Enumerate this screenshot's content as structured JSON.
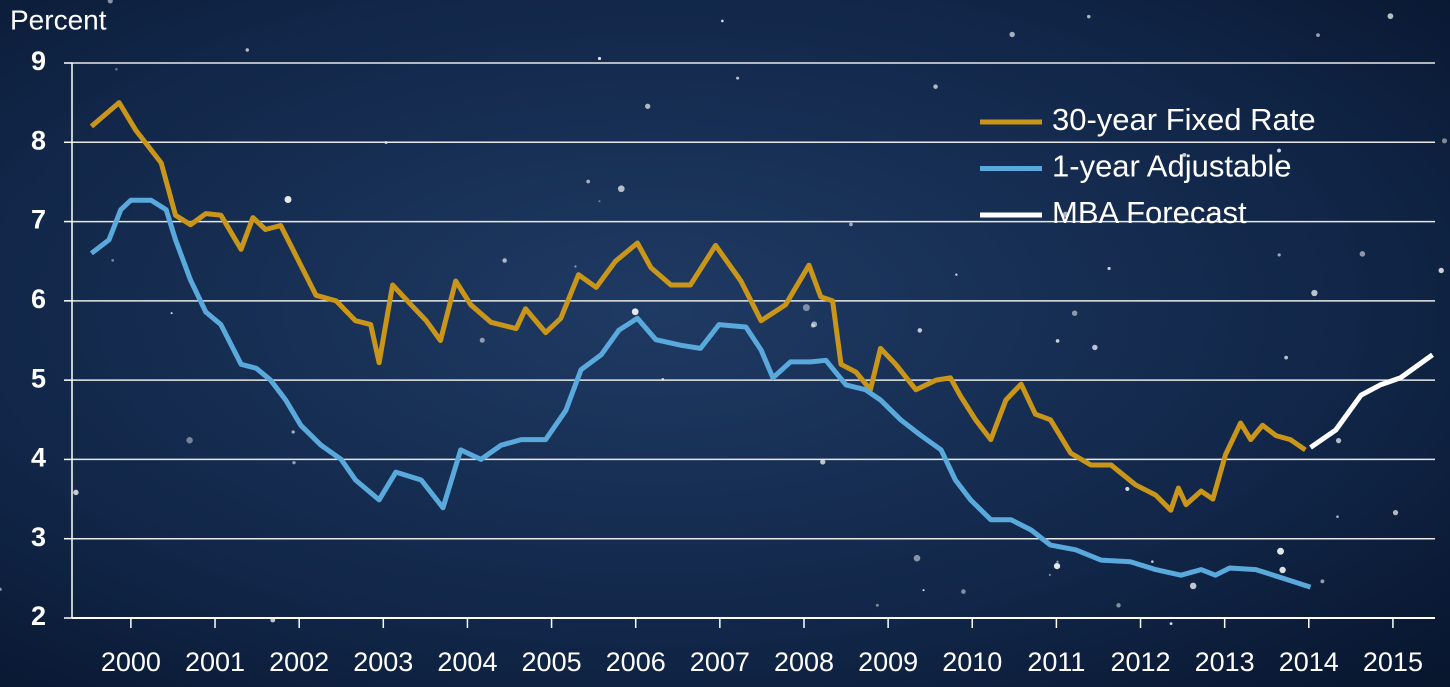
{
  "chart_data": {
    "type": "line",
    "y_label": "Percent",
    "xlim": [
      1999.8,
      2016.0
    ],
    "xticks": [
      {
        "value": 2000.5,
        "label": "2000"
      },
      {
        "value": 2001.5,
        "label": "2001"
      },
      {
        "value": 2002.5,
        "label": "2002"
      },
      {
        "value": 2003.5,
        "label": "2003"
      },
      {
        "value": 2004.5,
        "label": "2004"
      },
      {
        "value": 2005.5,
        "label": "2005"
      },
      {
        "value": 2006.5,
        "label": "2006"
      },
      {
        "value": 2007.5,
        "label": "2007"
      },
      {
        "value": 2008.5,
        "label": "2008"
      },
      {
        "value": 2009.5,
        "label": "2009"
      },
      {
        "value": 2010.5,
        "label": "2010"
      },
      {
        "value": 2011.5,
        "label": "2011"
      },
      {
        "value": 2012.5,
        "label": "2012"
      },
      {
        "value": 2013.5,
        "label": "2013"
      },
      {
        "value": 2014.5,
        "label": "2014"
      },
      {
        "value": 2015.5,
        "label": "2015"
      }
    ],
    "ylim": [
      2,
      9
    ],
    "yticks": [
      2,
      3,
      4,
      5,
      6,
      7,
      8,
      9
    ],
    "grid": true,
    "legend": "upper right",
    "series": [
      {
        "name": "30-year Fixed Rate",
        "color": "#c9961a",
        "x": [
          2000.03,
          2000.36,
          2000.56,
          2000.86,
          2001.03,
          2001.21,
          2001.39,
          2001.57,
          2001.81,
          2001.95,
          2002.1,
          2002.28,
          2002.52,
          2002.7,
          2002.94,
          2003.17,
          2003.35,
          2003.45,
          2003.61,
          2003.83,
          2004.01,
          2004.18,
          2004.36,
          2004.54,
          2004.78,
          2005.08,
          2005.19,
          2005.43,
          2005.61,
          2005.82,
          2006.03,
          2006.26,
          2006.52,
          2006.68,
          2006.92,
          2007.15,
          2007.45,
          2007.75,
          2007.99,
          2008.28,
          2008.56,
          2008.7,
          2008.84,
          2008.94,
          2009.12,
          2009.29,
          2009.41,
          2009.59,
          2009.83,
          2010.07,
          2010.24,
          2010.36,
          2010.54,
          2010.72,
          2010.9,
          2011.08,
          2011.25,
          2011.43,
          2011.67,
          2011.91,
          2012.15,
          2012.44,
          2012.68,
          2012.86,
          2012.95,
          2013.04,
          2013.22,
          2013.36,
          2013.51,
          2013.69,
          2013.81,
          2013.95,
          2014.11,
          2014.28,
          2014.46
        ],
        "values": [
          8.2,
          8.5,
          8.15,
          7.74,
          7.08,
          6.96,
          7.1,
          7.08,
          6.65,
          7.05,
          6.9,
          6.95,
          6.45,
          6.07,
          6.0,
          5.75,
          5.7,
          5.22,
          6.2,
          5.95,
          5.75,
          5.5,
          6.25,
          5.95,
          5.73,
          5.65,
          5.9,
          5.6,
          5.78,
          6.33,
          6.17,
          6.5,
          6.73,
          6.42,
          6.2,
          6.2,
          6.7,
          6.25,
          5.75,
          5.95,
          6.45,
          6.05,
          6.0,
          5.2,
          5.1,
          4.88,
          5.4,
          5.2,
          4.88,
          5.0,
          5.03,
          4.8,
          4.5,
          4.25,
          4.75,
          4.95,
          4.57,
          4.5,
          4.08,
          3.93,
          3.93,
          3.68,
          3.55,
          3.36,
          3.64,
          3.43,
          3.6,
          3.5,
          4.06,
          4.46,
          4.25,
          4.43,
          4.3,
          4.25,
          4.12
        ]
      },
      {
        "name": "1-year Adjustable",
        "color": "#5aa9dc",
        "x": [
          2000.03,
          2000.24,
          2000.38,
          2000.5,
          2000.74,
          2000.92,
          2001.03,
          2001.21,
          2001.39,
          2001.57,
          2001.81,
          2001.99,
          2002.16,
          2002.34,
          2002.52,
          2002.76,
          2003.0,
          2003.17,
          2003.45,
          2003.65,
          2003.95,
          2004.21,
          2004.42,
          2004.66,
          2004.9,
          2005.14,
          2005.43,
          2005.67,
          2005.85,
          2006.09,
          2006.3,
          2006.52,
          2006.74,
          2007.04,
          2007.27,
          2007.49,
          2007.81,
          2007.99,
          2008.13,
          2008.34,
          2008.58,
          2008.76,
          2009.0,
          2009.23,
          2009.41,
          2009.65,
          2009.88,
          2010.13,
          2010.3,
          2010.48,
          2010.72,
          2010.96,
          2011.2,
          2011.43,
          2011.73,
          2012.03,
          2012.38,
          2012.68,
          2012.98,
          2013.22,
          2013.39,
          2013.56,
          2013.87,
          2014.17,
          2014.52
        ],
        "values": [
          6.6,
          6.77,
          7.15,
          7.27,
          7.27,
          7.15,
          6.77,
          6.26,
          5.86,
          5.7,
          5.2,
          5.15,
          5.0,
          4.75,
          4.43,
          4.18,
          4.0,
          3.74,
          3.49,
          3.84,
          3.74,
          3.39,
          4.12,
          4.0,
          4.18,
          4.25,
          4.25,
          4.62,
          5.13,
          5.32,
          5.63,
          5.78,
          5.51,
          5.44,
          5.4,
          5.7,
          5.67,
          5.38,
          5.03,
          5.23,
          5.23,
          5.25,
          4.94,
          4.88,
          4.75,
          4.5,
          4.31,
          4.12,
          3.74,
          3.49,
          3.24,
          3.24,
          3.11,
          2.92,
          2.86,
          2.73,
          2.71,
          2.61,
          2.54,
          2.61,
          2.54,
          2.63,
          2.61,
          2.51,
          2.39
        ]
      },
      {
        "name": "MBA Forecast",
        "color": "#ffffff",
        "x": [
          2014.52,
          2014.82,
          2015.12,
          2015.35,
          2015.59,
          2015.97
        ],
        "values": [
          4.15,
          4.37,
          4.81,
          4.94,
          5.03,
          5.32
        ]
      }
    ]
  }
}
